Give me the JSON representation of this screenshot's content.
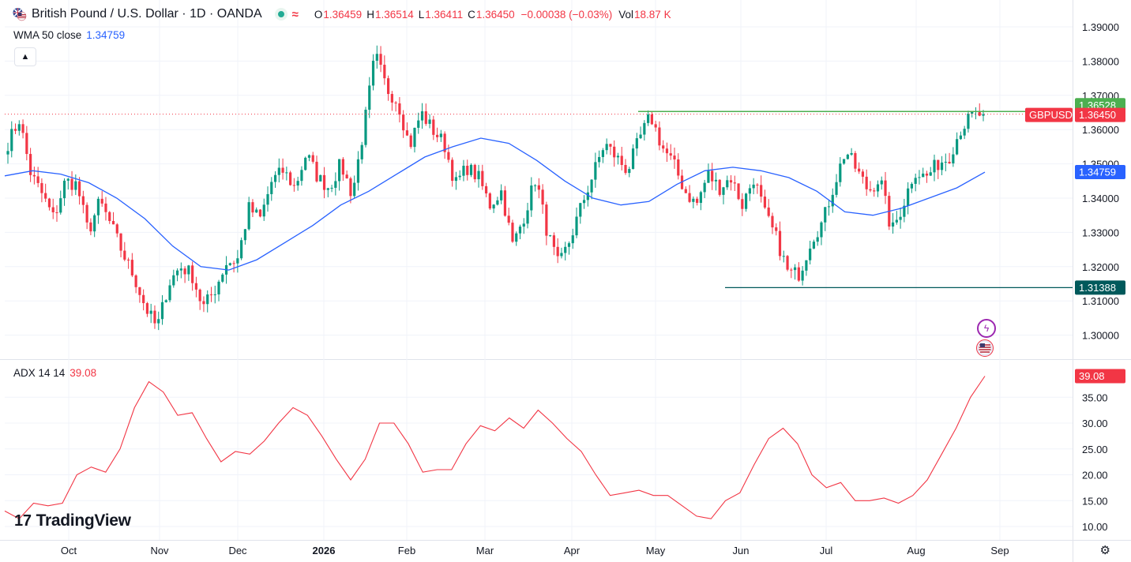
{
  "header": {
    "title": "British Pound / U.S. Dollar · 1D · OANDA",
    "open_label": "O",
    "open": "1.36459",
    "high_label": "H",
    "high": "1.36514",
    "low_label": "L",
    "low": "1.36411",
    "close_label": "C",
    "close": "1.36450",
    "change": "−0.00038 (−0.03%)",
    "vol_label": "Vol",
    "vol": "18.87 K"
  },
  "wma": {
    "label": "WMA 50 close",
    "value": "1.34759",
    "color": "#2962ff"
  },
  "adx": {
    "label": "ADX 14 14",
    "value": "39.08",
    "color": "#f23645"
  },
  "brand": "TradingView",
  "colors": {
    "up": "#089981",
    "down": "#f23645",
    "green_line": "#4caf50",
    "support_line": "#00595b"
  },
  "price_labels": {
    "resistance": "1.36528",
    "symbol": "GBPUSD",
    "last": "1.36450",
    "wma": "1.34759",
    "support": "1.31388"
  },
  "chart_data": [
    {
      "type": "candlestick",
      "symbol": "GBPUSD",
      "interval": "1D",
      "x_axis_labels": [
        "Oct",
        "Nov",
        "Dec",
        "2026",
        "Feb",
        "Mar",
        "Apr",
        "May",
        "Jun",
        "Jul",
        "Aug",
        "Sep"
      ],
      "y_axis_ticks": [
        "1.30000",
        "1.31000",
        "1.32000",
        "1.33000",
        "1.34000",
        "1.35000",
        "1.36000",
        "1.37000",
        "1.38000",
        "1.39000"
      ],
      "ylim": [
        1.2925,
        1.3925
      ],
      "close_path": [
        1.356,
        1.363,
        1.347,
        1.341,
        1.334,
        1.345,
        1.344,
        1.33,
        1.339,
        1.332,
        1.324,
        1.317,
        1.308,
        1.302,
        1.315,
        1.32,
        1.318,
        1.308,
        1.313,
        1.321,
        1.322,
        1.337,
        1.334,
        1.345,
        1.348,
        1.343,
        1.353,
        1.346,
        1.343,
        1.35,
        1.341,
        1.36,
        1.382,
        1.372,
        1.368,
        1.355,
        1.365,
        1.36,
        1.356,
        1.344,
        1.349,
        1.346,
        1.338,
        1.342,
        1.326,
        1.335,
        1.346,
        1.33,
        1.32,
        1.328,
        1.338,
        1.347,
        1.356,
        1.352,
        1.348,
        1.357,
        1.364,
        1.355,
        1.35,
        1.342,
        1.338,
        1.347,
        1.343,
        1.346,
        1.338,
        1.346,
        1.335,
        1.328,
        1.318,
        1.318,
        1.328,
        1.333,
        1.344,
        1.354,
        1.348,
        1.342,
        1.346,
        1.33,
        1.338,
        1.348,
        1.346,
        1.35,
        1.352,
        1.36,
        1.364,
        1.3645
      ],
      "wma_path": [
        1.3465,
        1.348,
        1.347,
        1.3445,
        1.34,
        1.334,
        1.326,
        1.32,
        1.319,
        1.322,
        1.327,
        1.332,
        1.338,
        1.342,
        1.347,
        1.352,
        1.355,
        1.3575,
        1.356,
        1.351,
        1.345,
        1.34,
        1.338,
        1.339,
        1.344,
        1.348,
        1.349,
        1.348,
        1.346,
        1.342,
        1.336,
        1.335,
        1.337,
        1.34,
        1.343,
        1.34759
      ],
      "resistance_level": 1.36528,
      "support_level": 1.31388,
      "last_price": 1.3645
    },
    {
      "type": "line",
      "series": [
        {
          "name": "ADX 14 14",
          "last": 39.08
        }
      ],
      "y_axis_ticks": [
        "10.00",
        "15.00",
        "20.00",
        "25.00",
        "30.00",
        "35.00"
      ],
      "ylim": [
        8.5,
        41
      ],
      "values": [
        13.0,
        11.5,
        14.5,
        14.0,
        14.5,
        20.0,
        21.5,
        20.5,
        25.0,
        33.0,
        38.0,
        36.0,
        31.5,
        32.0,
        27.0,
        22.5,
        24.5,
        24.0,
        26.5,
        30.0,
        33.0,
        31.5,
        27.5,
        23.0,
        19.0,
        23.0,
        30.0,
        30.0,
        26.0,
        20.5,
        21.0,
        21.0,
        26.0,
        29.5,
        28.5,
        31.0,
        29.0,
        32.5,
        30.0,
        27.0,
        24.5,
        20.0,
        16.0,
        16.5,
        17.0,
        16.0,
        16.0,
        14.0,
        12.0,
        11.5,
        15.0,
        16.5,
        22.0,
        27.0,
        29.0,
        26.0,
        20.0,
        17.5,
        18.5,
        15.0,
        15.0,
        15.5,
        14.5,
        16.0,
        19.0,
        24.0,
        29.0,
        35.0,
        39.08
      ]
    }
  ]
}
